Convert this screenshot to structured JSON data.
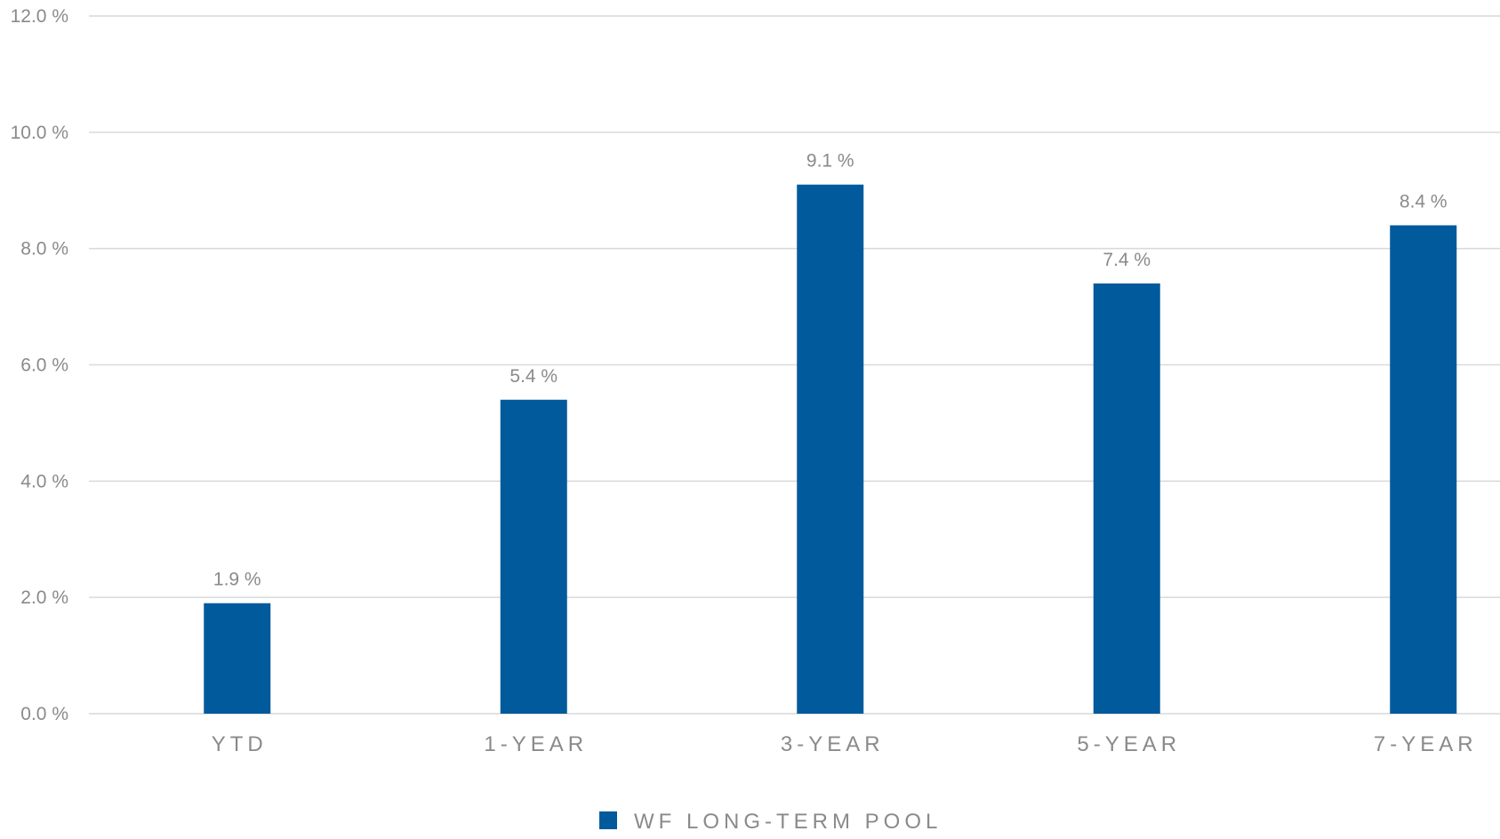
{
  "chart_data": {
    "type": "bar",
    "categories": [
      "YTD",
      "1-YEAR",
      "3-YEAR",
      "5-YEAR",
      "7-YEAR"
    ],
    "series": [
      {
        "name": "WF LONG-TERM POOL",
        "values": [
          1.9,
          5.4,
          9.1,
          7.4,
          8.4
        ],
        "data_labels": [
          "1.9 %",
          "5.4 %",
          "9.1 %",
          "7.4 %",
          "8.4 %"
        ]
      }
    ],
    "y_ticks": [
      0,
      2,
      4,
      6,
      8,
      10,
      12
    ],
    "y_tick_labels": [
      "0.0 %",
      "2.0 %",
      "4.0 %",
      "6.0 %",
      "8.0 %",
      "10.0 %",
      "12.0 %"
    ],
    "ylim": [
      0,
      12
    ],
    "grid": true,
    "legend_position": "bottom-center",
    "title": "",
    "xlabel": "",
    "ylabel": ""
  },
  "colors": {
    "bar": "#005a9c",
    "grid": "#d9d9d9",
    "text": "#8a8a8a"
  }
}
